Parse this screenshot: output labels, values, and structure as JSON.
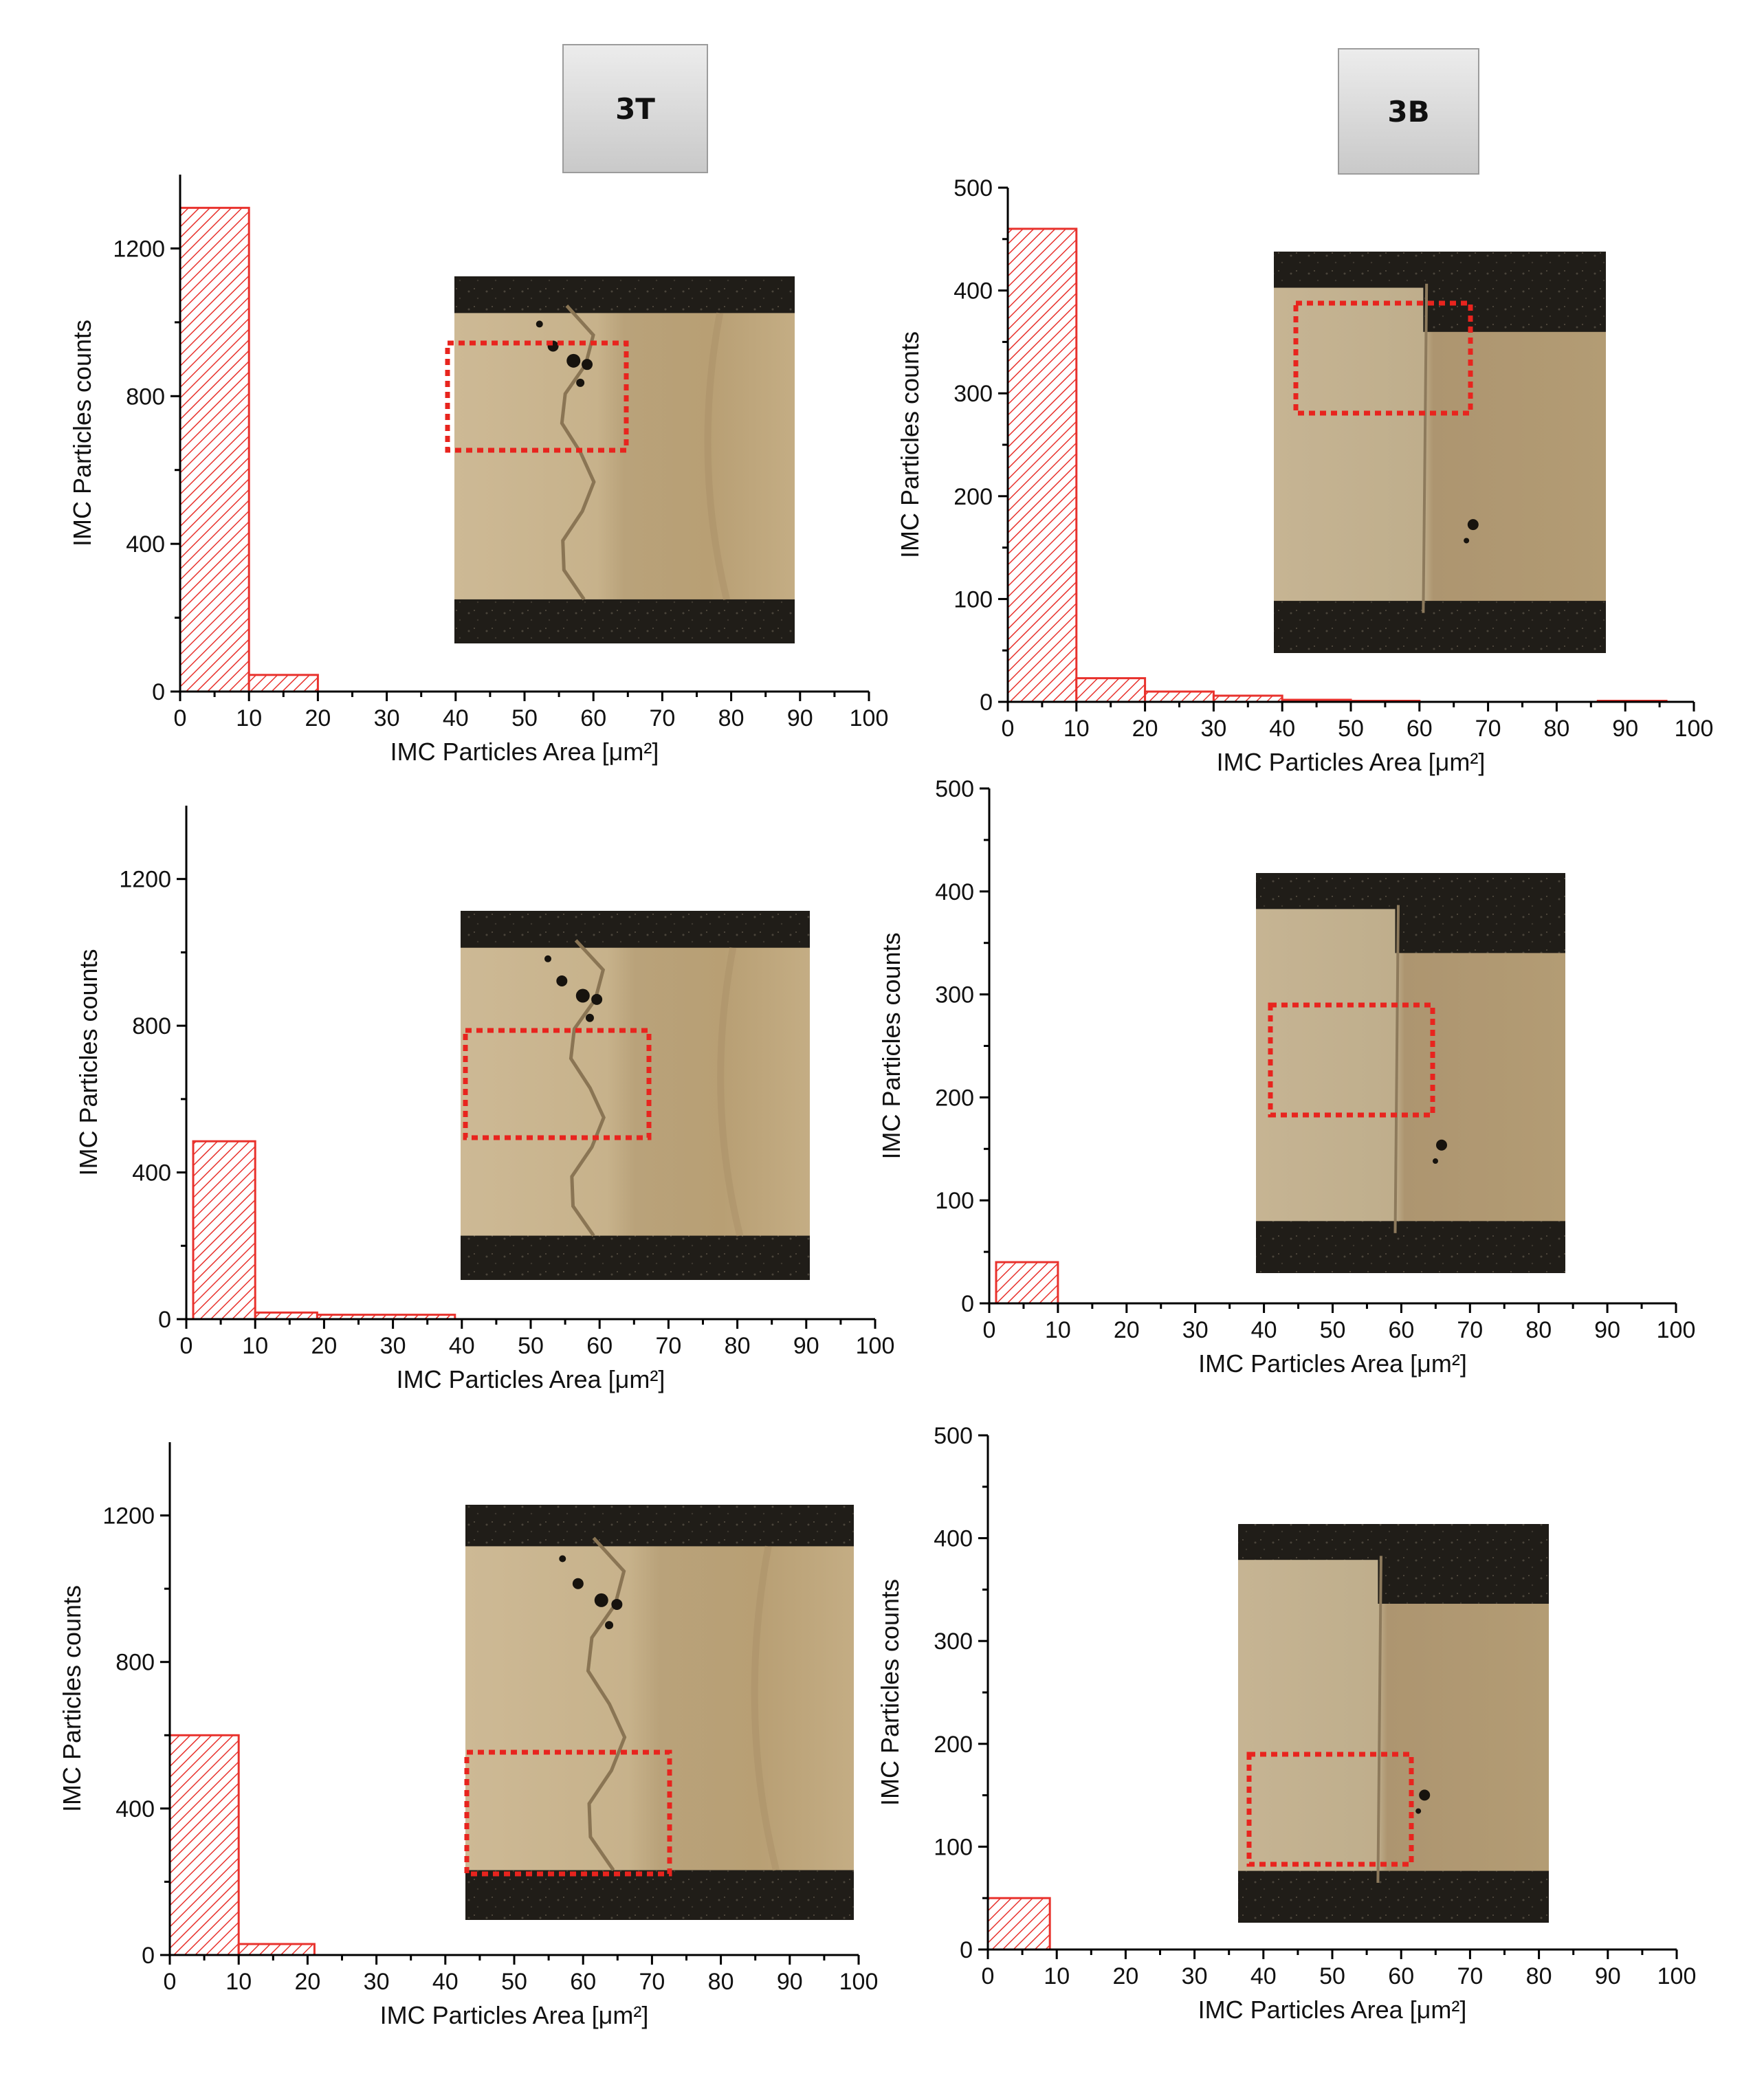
{
  "column_headers": {
    "left": "3T",
    "right": "3B"
  },
  "colors": {
    "bar_stroke": "#e8322d",
    "hatch": "#e8322d",
    "roi_box": "#e8241e",
    "inset_dark": "#201d18",
    "inset_metal": "#c7b38a"
  },
  "chart_data": [
    {
      "id": "3T-1",
      "type": "bar",
      "xlabel": "IMC Particles Area [μm²]",
      "ylabel": "IMC Particles counts",
      "xlim": [
        0,
        100
      ],
      "ylim": [
        0,
        1400
      ],
      "xticks": [
        0,
        10,
        20,
        30,
        40,
        50,
        60,
        70,
        80,
        90,
        100
      ],
      "yticks": [
        0,
        400,
        800,
        1200
      ],
      "bins": [
        [
          0,
          10,
          1310
        ],
        [
          10,
          20,
          45
        ]
      ],
      "inset": "micrograph",
      "roi": "upper-middle"
    },
    {
      "id": "3B-1",
      "type": "bar",
      "xlabel": "IMC Particles Area [μm²]",
      "ylabel": "IMC Particles counts",
      "xlim": [
        0,
        100
      ],
      "ylim": [
        0,
        500
      ],
      "xticks": [
        0,
        10,
        20,
        30,
        40,
        50,
        60,
        70,
        80,
        90,
        100
      ],
      "yticks": [
        0,
        100,
        200,
        300,
        400,
        500
      ],
      "bins": [
        [
          0,
          10,
          460
        ],
        [
          10,
          20,
          23
        ],
        [
          20,
          30,
          10
        ],
        [
          30,
          40,
          6
        ],
        [
          40,
          50,
          2
        ],
        [
          50,
          60,
          1
        ],
        [
          86,
          96,
          1
        ]
      ],
      "inset": "micrograph",
      "roi": "top"
    },
    {
      "id": "3T-2",
      "type": "bar",
      "xlabel": "IMC Particles Area [μm²]",
      "ylabel": "IMC Particles counts",
      "xlim": [
        0,
        100
      ],
      "ylim": [
        0,
        1400
      ],
      "xticks": [
        0,
        10,
        20,
        30,
        40,
        50,
        60,
        70,
        80,
        90,
        100
      ],
      "yticks": [
        0,
        400,
        800,
        1200
      ],
      "bins": [
        [
          1,
          10,
          485
        ],
        [
          10,
          19,
          18
        ],
        [
          19,
          39,
          12
        ]
      ],
      "inset": "micrograph",
      "roi": "middle"
    },
    {
      "id": "3B-2",
      "type": "bar",
      "xlabel": "IMC Particles Area [μm²]",
      "ylabel": "IMC Particles counts",
      "xlim": [
        0,
        100
      ],
      "ylim": [
        0,
        500
      ],
      "xticks": [
        0,
        10,
        20,
        30,
        40,
        50,
        60,
        70,
        80,
        90,
        100
      ],
      "yticks": [
        0,
        100,
        200,
        300,
        400,
        500
      ],
      "bins": [
        [
          1,
          10,
          40
        ]
      ],
      "inset": "micrograph",
      "roi": "middle"
    },
    {
      "id": "3T-3",
      "type": "bar",
      "xlabel": "IMC Particles Area [μm²]",
      "ylabel": "IMC Particles counts",
      "xlim": [
        0,
        100
      ],
      "ylim": [
        0,
        1400
      ],
      "xticks": [
        0,
        10,
        20,
        30,
        40,
        50,
        60,
        70,
        80,
        90,
        100
      ],
      "yticks": [
        0,
        400,
        800,
        1200
      ],
      "bins": [
        [
          0,
          10,
          600
        ],
        [
          10,
          21,
          30
        ]
      ],
      "inset": "micrograph",
      "roi": "bottom"
    },
    {
      "id": "3B-3",
      "type": "bar",
      "xlabel": "IMC Particles Area [μm²]",
      "ylabel": "IMC Particles counts",
      "xlim": [
        0,
        100
      ],
      "ylim": [
        0,
        500
      ],
      "xticks": [
        0,
        10,
        20,
        30,
        40,
        50,
        60,
        70,
        80,
        90,
        100
      ],
      "yticks": [
        0,
        100,
        200,
        300,
        400,
        500
      ],
      "bins": [
        [
          0,
          9,
          50
        ]
      ],
      "inset": "micrograph",
      "roi": "bottom"
    }
  ]
}
